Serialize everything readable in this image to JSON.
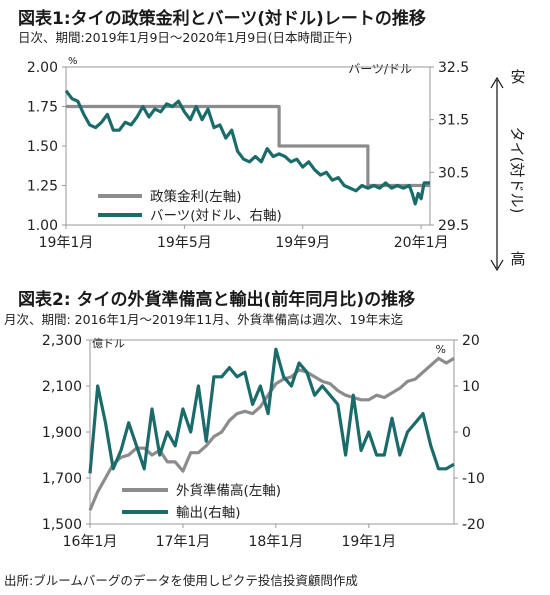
{
  "chart1": {
    "title": "図表1:タイの政策金利とバーツ(対ドル)レートの推移",
    "subtitle": "日次、期間:2019年1月9日～2020年1月9日(日本時間正午)",
    "left_unit": "%",
    "right_unit": "バーツ/ドル",
    "side_top": "安",
    "side_mid": "タイ(対ドル)",
    "side_bottom": "高",
    "colors": {
      "policy": "#8c8c8c",
      "baht": "#1b6b6b"
    },
    "chart_data": {
      "type": "line",
      "x_ticks": [
        "19年1月",
        "19年5月",
        "19年9月",
        "20年1月"
      ],
      "left_axis": {
        "ticks": [
          "2.00",
          "1.75",
          "1.50",
          "1.25",
          "1.00"
        ],
        "ylim": [
          1.0,
          2.0
        ]
      },
      "right_axis": {
        "ticks": [
          "32.5",
          "31.5",
          "30.5",
          "29.5"
        ],
        "ylim": [
          29.5,
          32.5
        ],
        "inverted": true
      },
      "series": [
        {
          "name": "政策金利(左軸)",
          "axis": "left",
          "x_months": [
            0,
            7.2,
            7.2,
            10.2,
            10.2,
            12.3
          ],
          "values": [
            1.75,
            1.75,
            1.5,
            1.5,
            1.25,
            1.25
          ]
        },
        {
          "name": "バーツ(対ドル、右軸)",
          "axis": "right",
          "x_months": [
            0,
            0.2,
            0.4,
            0.6,
            0.8,
            1.0,
            1.2,
            1.4,
            1.6,
            1.8,
            2.0,
            2.2,
            2.4,
            2.6,
            2.8,
            3.0,
            3.2,
            3.4,
            3.6,
            3.8,
            4.0,
            4.2,
            4.4,
            4.6,
            4.8,
            5.0,
            5.2,
            5.4,
            5.6,
            5.8,
            6.0,
            6.2,
            6.4,
            6.6,
            6.8,
            7.0,
            7.2,
            7.4,
            7.6,
            7.8,
            8.0,
            8.2,
            8.4,
            8.6,
            8.8,
            9.0,
            9.2,
            9.4,
            9.6,
            9.8,
            10.0,
            10.2,
            10.4,
            10.6,
            10.8,
            11.0,
            11.2,
            11.4,
            11.6,
            11.7,
            11.8,
            11.9,
            12.0,
            12.1,
            12.3
          ],
          "values": [
            32.05,
            31.9,
            31.85,
            31.6,
            31.4,
            31.35,
            31.45,
            31.6,
            31.3,
            31.3,
            31.45,
            31.4,
            31.55,
            31.75,
            31.55,
            31.7,
            31.65,
            31.8,
            31.75,
            31.85,
            31.65,
            31.5,
            31.75,
            31.5,
            31.7,
            31.35,
            31.4,
            31.15,
            31.3,
            30.9,
            30.75,
            30.7,
            30.8,
            30.7,
            30.95,
            30.8,
            30.85,
            30.8,
            30.7,
            30.75,
            30.6,
            30.7,
            30.55,
            30.45,
            30.5,
            30.35,
            30.4,
            30.25,
            30.2,
            30.15,
            30.25,
            30.2,
            30.25,
            30.2,
            30.3,
            30.2,
            30.25,
            30.2,
            30.25,
            30.1,
            29.9,
            30.1,
            30.0,
            30.3,
            30.3
          ]
        }
      ]
    }
  },
  "chart2": {
    "title": "図表2: タイの外貨準備高と輸出(前年同月比)の推移",
    "subtitle": "月次、期間: 2016年1月～2019年11月、外貨準備高は週次、19年末迄",
    "left_unit": "億ドル",
    "right_unit": "%",
    "colors": {
      "reserves": "#8c8c8c",
      "exports": "#1b6b6b"
    },
    "chart_data": {
      "type": "line",
      "x_ticks": [
        "16年1月",
        "17年1月",
        "18年1月",
        "19年1月"
      ],
      "left_axis": {
        "ticks": [
          "2,300",
          "2,100",
          "1,900",
          "1,700",
          "1,500"
        ],
        "ylim": [
          1500,
          2300
        ]
      },
      "right_axis": {
        "ticks": [
          "20",
          "10",
          "0",
          "-10",
          "-20"
        ],
        "ylim": [
          -20,
          20
        ]
      },
      "series": [
        {
          "name": "外貨準備高(左軸)",
          "axis": "left",
          "x_months": [
            0,
            1,
            2,
            3,
            4,
            5,
            6,
            7,
            8,
            9,
            10,
            11,
            12,
            13,
            14,
            15,
            16,
            17,
            18,
            19,
            20,
            21,
            22,
            23,
            24,
            25,
            26,
            27,
            28,
            29,
            30,
            31,
            32,
            33,
            34,
            35,
            36,
            37,
            38,
            39,
            40,
            41,
            42,
            43,
            44,
            45,
            46,
            47
          ],
          "values": [
            1560,
            1640,
            1700,
            1760,
            1790,
            1800,
            1830,
            1830,
            1800,
            1820,
            1770,
            1770,
            1730,
            1810,
            1810,
            1840,
            1880,
            1900,
            1950,
            1980,
            1990,
            1980,
            2010,
            2060,
            2110,
            2130,
            2140,
            2170,
            2160,
            2140,
            2120,
            2110,
            2080,
            2060,
            2050,
            2040,
            2040,
            2060,
            2050,
            2070,
            2090,
            2120,
            2130,
            2160,
            2190,
            2220,
            2200,
            2220
          ]
        },
        {
          "name": "輸出(右軸)",
          "axis": "right",
          "x_months": [
            0,
            1,
            2,
            3,
            4,
            5,
            6,
            7,
            8,
            9,
            10,
            11,
            12,
            13,
            14,
            15,
            16,
            17,
            18,
            19,
            20,
            21,
            22,
            23,
            24,
            25,
            26,
            27,
            28,
            29,
            30,
            31,
            32,
            33,
            34,
            35,
            36,
            37,
            38,
            39,
            40,
            41,
            42,
            43,
            44,
            45,
            46,
            47
          ],
          "values": [
            -9,
            10,
            2,
            -8,
            -4,
            2,
            -3,
            -8,
            5,
            -5,
            0,
            -3,
            5,
            0,
            10,
            -2,
            12,
            12,
            14,
            12,
            13,
            6,
            10,
            4,
            18,
            12,
            10,
            15,
            13,
            8,
            10,
            8,
            6,
            -5,
            8,
            -4,
            0,
            -5,
            -5,
            3,
            -5,
            0,
            2,
            4,
            -3,
            -8,
            -8,
            -7
          ]
        }
      ]
    }
  },
  "source": "出所:ブルームバーグのデータを使用しピクテ投信投資顧問作成"
}
